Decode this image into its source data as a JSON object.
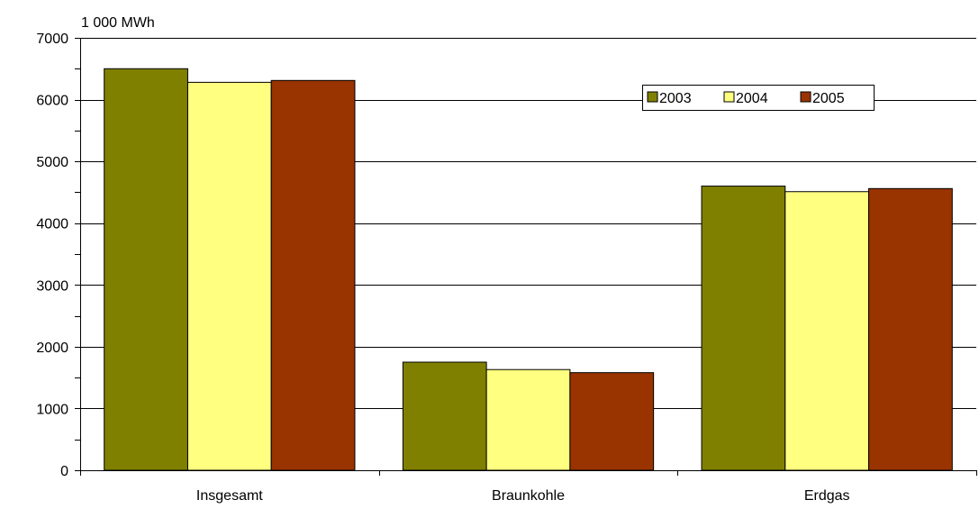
{
  "chart_data": {
    "type": "bar",
    "unit_label": "1 000 MWh",
    "title": "",
    "xlabel": "",
    "ylabel": "",
    "categories": [
      "Insgesamt",
      "Braunkohle",
      "Erdgas"
    ],
    "series": [
      {
        "name": "2003",
        "color": "#808000",
        "values": [
          6500,
          1750,
          4600
        ]
      },
      {
        "name": "2004",
        "color": "#ffff80",
        "values": [
          6280,
          1630,
          4510
        ]
      },
      {
        "name": "2005",
        "color": "#993300",
        "values": [
          6310,
          1580,
          4560
        ]
      }
    ],
    "ylim": [
      0,
      7000
    ],
    "yticks": [
      0,
      1000,
      2000,
      3000,
      4000,
      5000,
      6000,
      7000
    ],
    "grid": true,
    "legend_position": "top-right"
  }
}
